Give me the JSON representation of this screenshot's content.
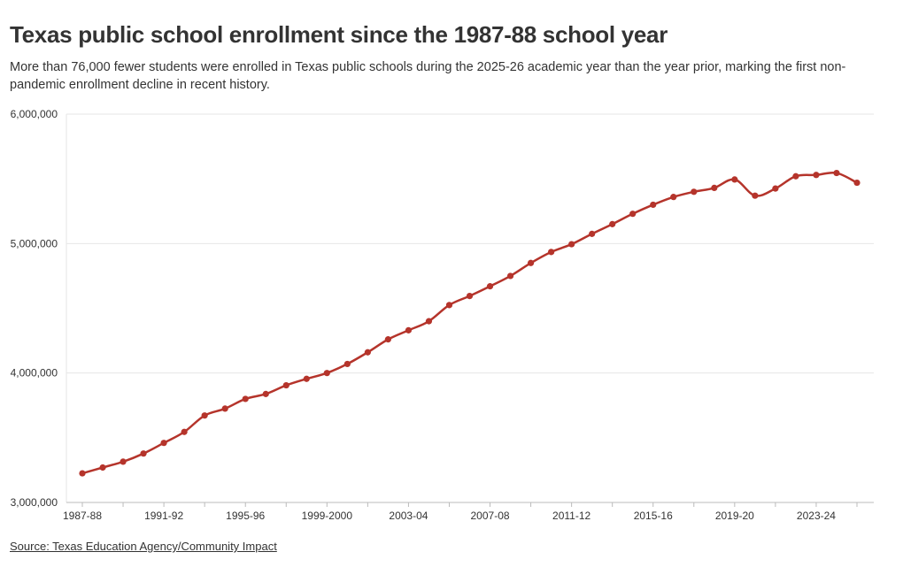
{
  "header": {
    "title": "Texas public school enrollment since the 1987-88 school year",
    "subtitle": "More than 76,000 fewer students were enrolled in Texas public schools during the 2025-26 academic year than the year prior, marking the first non-pandemic enrollment decline in recent history."
  },
  "footer": {
    "source": "Source: Texas Education Agency/Community Impact"
  },
  "colors": {
    "line": "#b5342b",
    "grid": "#e6e6e6",
    "axis": "#bbbbbb",
    "text": "#333333"
  },
  "chart_data": {
    "type": "line",
    "x": [
      "1987-88",
      "1988-89",
      "1989-90",
      "1990-91",
      "1991-92",
      "1992-93",
      "1993-94",
      "1994-95",
      "1995-96",
      "1996-97",
      "1997-98",
      "1998-99",
      "1999-2000",
      "2000-01",
      "2001-02",
      "2002-03",
      "2003-04",
      "2004-05",
      "2005-06",
      "2006-07",
      "2007-08",
      "2008-09",
      "2009-10",
      "2010-11",
      "2011-12",
      "2012-13",
      "2013-14",
      "2014-15",
      "2015-16",
      "2016-17",
      "2017-18",
      "2018-19",
      "2019-20",
      "2020-21",
      "2021-22",
      "2022-23",
      "2023-24",
      "2024-25",
      "2025-26"
    ],
    "x_tick_labels": [
      "1987-88",
      "1991-92",
      "1995-96",
      "1999-2000",
      "2003-04",
      "2007-08",
      "2011-12",
      "2015-16",
      "2019-20",
      "2023-24"
    ],
    "series": [
      {
        "values": [
          3225000,
          3270000,
          3315000,
          3378000,
          3460000,
          3545000,
          3672000,
          3725000,
          3800000,
          3838000,
          3905000,
          3955000,
          4000000,
          4070000,
          4160000,
          4260000,
          4330000,
          4400000,
          4525000,
          4595000,
          4670000,
          4750000,
          4850000,
          4935000,
          4995000,
          5075000,
          5150000,
          5230000,
          5300000,
          5360000,
          5400000,
          5430000,
          5495000,
          5370000,
          5425000,
          5520000,
          5530000,
          5545000,
          5470000
        ]
      }
    ],
    "y_ticks": [
      3000000,
      4000000,
      5000000,
      6000000
    ],
    "y_tick_labels": [
      "3,000,000",
      "4,000,000",
      "5,000,000",
      "6,000,000"
    ],
    "ylim": [
      3000000,
      6000000
    ],
    "grid": true,
    "legend": "none"
  }
}
